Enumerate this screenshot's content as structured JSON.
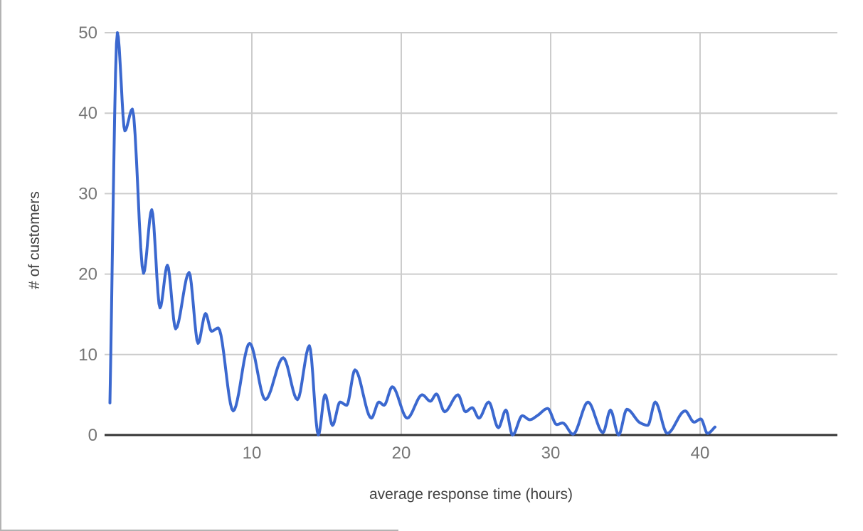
{
  "chart_data": {
    "type": "line",
    "xlabel": "average response time (hours)",
    "ylabel": "# of customers",
    "x_ticks": [
      10,
      20,
      30,
      40
    ],
    "y_ticks": [
      0,
      10,
      20,
      30,
      40,
      50
    ],
    "xlim": [
      0,
      49.2
    ],
    "ylim": [
      0,
      50
    ],
    "grid": true,
    "smooth": true,
    "legend": "none",
    "series": [
      {
        "name": "customers",
        "color": "#3b68cf",
        "x": [
          0.5,
          1,
          1.5,
          2,
          2.75,
          3.3,
          3.85,
          4.35,
          4.9,
          5.8,
          6.4,
          6.9,
          7.3,
          7.75,
          8.75,
          9.85,
          10.9,
          12.1,
          13.05,
          13.85,
          14.45,
          14.9,
          15.4,
          15.9,
          16.35,
          16.9,
          18,
          18.5,
          18.85,
          19.4,
          20.4,
          21.4,
          21.95,
          22.35,
          22.9,
          23.8,
          24.3,
          24.75,
          25.2,
          25.85,
          26.5,
          27,
          27.45,
          28.1,
          28.6,
          29.1,
          29.8,
          30.4,
          30.8,
          31.5,
          32.5,
          33.5,
          34,
          34.55,
          35.1,
          36,
          36.5,
          37,
          37.8,
          39,
          39.6,
          40.05,
          40.5,
          41
        ],
        "y": [
          4,
          50,
          37.8,
          40.5,
          20.1,
          28,
          15.8,
          21.1,
          13.2,
          20.2,
          11.4,
          15.1,
          12.9,
          13.3,
          3,
          11.4,
          4.4,
          9.6,
          4.4,
          11.1,
          0,
          5,
          1.2,
          4.1,
          3.7,
          8.1,
          2.1,
          4.1,
          3.7,
          6,
          2.1,
          5,
          4.2,
          5.1,
          2.9,
          5,
          2.9,
          3.4,
          2.1,
          4.1,
          0.9,
          3.1,
          0,
          2.4,
          1.9,
          2.4,
          3.3,
          1.3,
          1.5,
          0.1,
          4.1,
          0.3,
          3.1,
          0,
          3.2,
          1.5,
          1.2,
          4.1,
          0.2,
          3,
          1.6,
          2,
          0.2,
          1
        ]
      }
    ]
  },
  "colors": {
    "background": "#ffffff",
    "gridline": "#cccccc",
    "axis_line": "#333333",
    "tick_label": "#757575",
    "axis_title": "#424242",
    "window_border": "#b3b3b3"
  }
}
